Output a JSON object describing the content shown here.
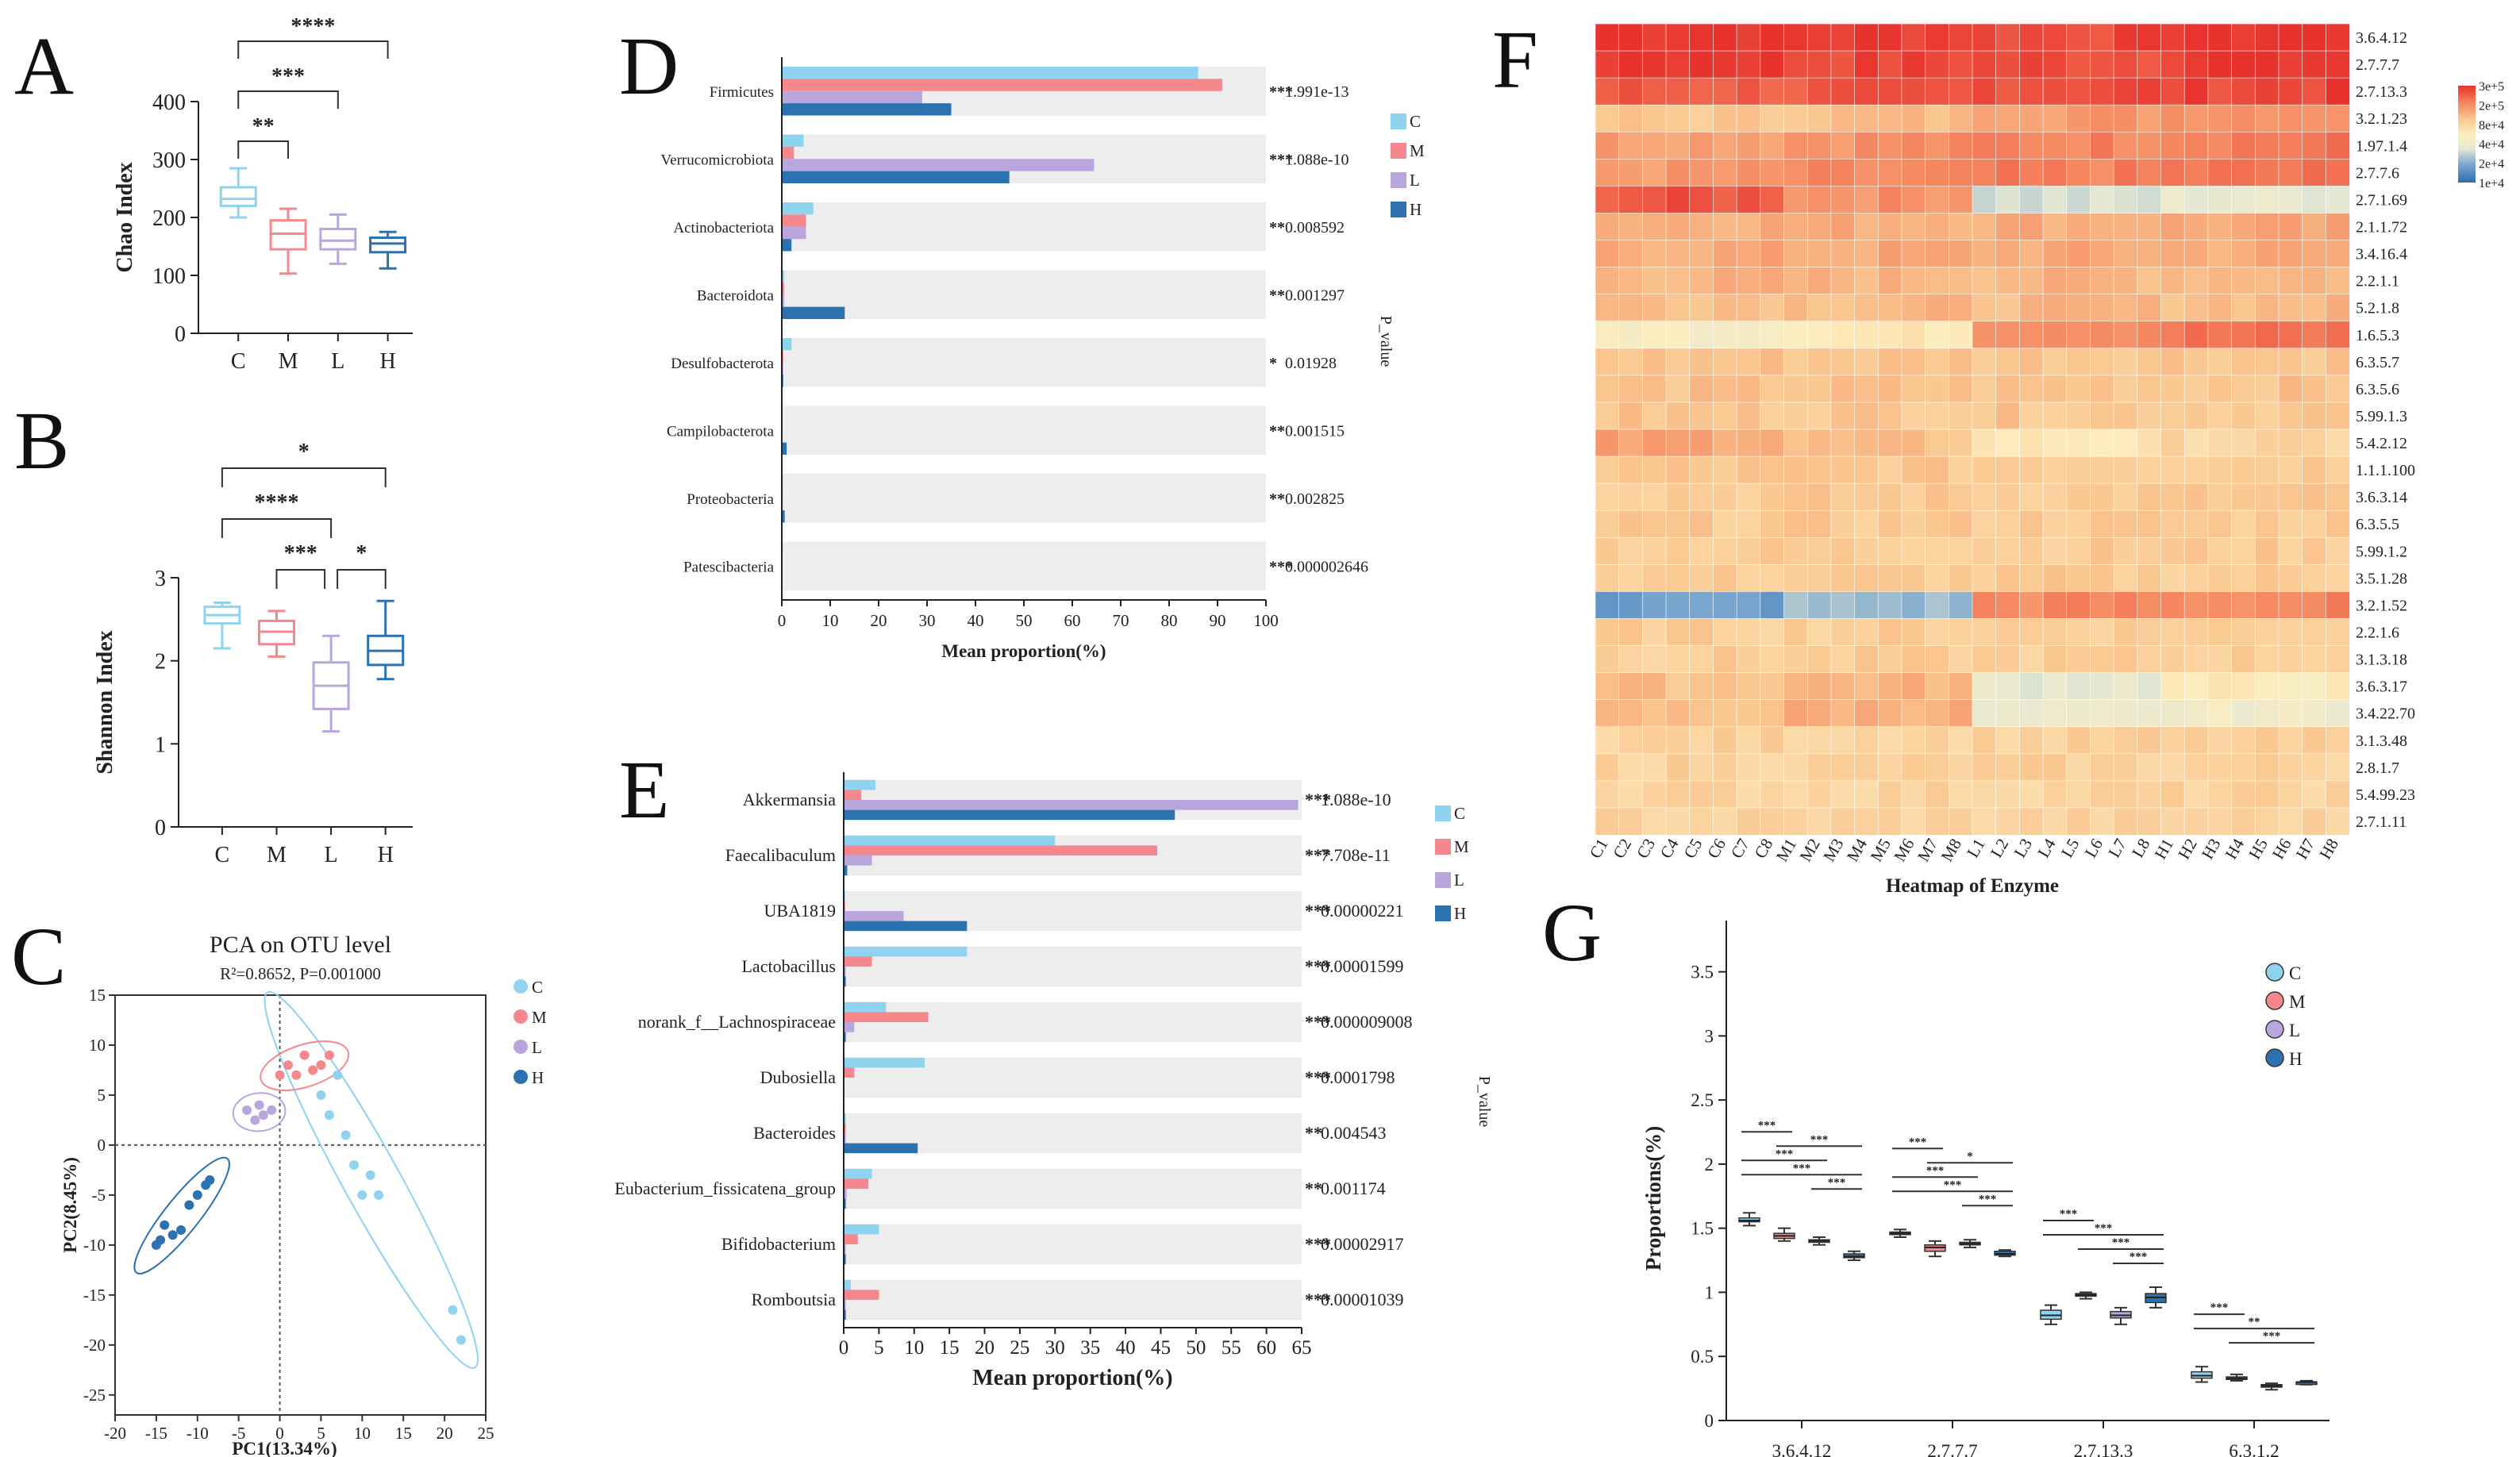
{
  "colors": {
    "C": "#8fd3ef",
    "M": "#f4888d",
    "L": "#b9a6dc",
    "H": "#2d72b0",
    "pval": "#d93a2e",
    "bandBg": "#ededed"
  },
  "groups": [
    "C",
    "M",
    "L",
    "H"
  ],
  "panels": {
    "A": {
      "letter": "A",
      "chart_data": {
        "type": "boxplot",
        "ylabel": "Chao Index",
        "ylim": [
          0,
          400
        ],
        "yticks": [
          "0",
          "100",
          "200",
          "300",
          "400"
        ],
        "categories": [
          "C",
          "M",
          "L",
          "H"
        ],
        "boxes": [
          {
            "group": "C",
            "min": 200,
            "q1": 220,
            "median": 232,
            "q3": 252,
            "max": 285
          },
          {
            "group": "M",
            "min": 103,
            "q1": 145,
            "median": 172,
            "q3": 195,
            "max": 215
          },
          {
            "group": "L",
            "min": 120,
            "q1": 145,
            "median": 160,
            "q3": 180,
            "max": 205
          },
          {
            "group": "H",
            "min": 112,
            "q1": 140,
            "median": 155,
            "q3": 165,
            "max": 175
          }
        ],
        "significance": [
          {
            "from": "C",
            "to": "M",
            "label": "**"
          },
          {
            "from": "C",
            "to": "L",
            "label": "***"
          },
          {
            "from": "C",
            "to": "H",
            "label": "****"
          }
        ]
      }
    },
    "B": {
      "letter": "B",
      "chart_data": {
        "type": "boxplot",
        "ylabel": "Shannon Index",
        "ylim": [
          0,
          3
        ],
        "yticks": [
          "0",
          "1",
          "2",
          "3"
        ],
        "categories": [
          "C",
          "M",
          "L",
          "H"
        ],
        "boxes": [
          {
            "group": "C",
            "min": 2.15,
            "q1": 2.45,
            "median": 2.55,
            "q3": 2.65,
            "max": 2.7
          },
          {
            "group": "M",
            "min": 2.05,
            "q1": 2.2,
            "median": 2.35,
            "q3": 2.48,
            "max": 2.6
          },
          {
            "group": "L",
            "min": 1.15,
            "q1": 1.42,
            "median": 1.7,
            "q3": 1.98,
            "max": 2.3
          },
          {
            "group": "H",
            "min": 1.78,
            "q1": 1.95,
            "median": 2.12,
            "q3": 2.3,
            "max": 2.72
          }
        ],
        "significance": [
          {
            "from": "C",
            "to": "H",
            "label": "*"
          },
          {
            "from": "C",
            "to": "L",
            "label": "****"
          },
          {
            "from": "M",
            "to": "L",
            "label": "***"
          },
          {
            "from": "L",
            "to": "H",
            "label": "*"
          }
        ]
      }
    },
    "C": {
      "letter": "C",
      "chart_data": {
        "type": "scatter",
        "title": "PCA on OTU level",
        "subtitle": "R²=0.8652, P=0.001000",
        "xlabel": "PC1(13.34%)",
        "ylabel": "PC2(8.45%)",
        "xlim": [
          -20,
          25
        ],
        "ylim": [
          -27,
          15
        ],
        "xticks": [
          "-20",
          "-15",
          "-10",
          "-5",
          "0",
          "5",
          "10",
          "15",
          "20",
          "25"
        ],
        "yticks": [
          "15",
          "10",
          "5",
          "0",
          "-5",
          "-10",
          "-15",
          "-20",
          "-25"
        ],
        "legend": [
          "C",
          "M",
          "L",
          "H"
        ],
        "series": [
          {
            "name": "C",
            "points": [
              [
                5,
                5
              ],
              [
                6,
                3
              ],
              [
                7,
                7
              ],
              [
                8,
                1
              ],
              [
                9,
                -2
              ],
              [
                10,
                -5
              ],
              [
                11,
                -3
              ],
              [
                12,
                -5
              ],
              [
                21,
                -16.5
              ],
              [
                22,
                -19.5
              ]
            ]
          },
          {
            "name": "M",
            "points": [
              [
                0,
                7
              ],
              [
                1,
                8
              ],
              [
                2,
                7
              ],
              [
                3,
                9
              ],
              [
                4,
                7.5
              ],
              [
                5,
                8
              ],
              [
                6,
                9
              ]
            ]
          },
          {
            "name": "L",
            "points": [
              [
                -4,
                3.5
              ],
              [
                -3,
                2.5
              ],
              [
                -2,
                3
              ],
              [
                -1,
                3.5
              ],
              [
                -2.5,
                4
              ]
            ]
          },
          {
            "name": "H",
            "points": [
              [
                -15,
                -10
              ],
              [
                -14,
                -8
              ],
              [
                -13,
                -9
              ],
              [
                -12,
                -8.5
              ],
              [
                -11,
                -6
              ],
              [
                -10,
                -5
              ],
              [
                -9,
                -4
              ],
              [
                -8.5,
                -3.5
              ],
              [
                -14.5,
                -9.5
              ]
            ]
          }
        ]
      }
    },
    "D": {
      "letter": "D",
      "chart_data": {
        "type": "bar",
        "orientation": "horizontal",
        "xlabel": "Mean proportion(%)",
        "pvalue_label": "P_value",
        "xlim": [
          0,
          100
        ],
        "xticks": [
          "0",
          "10",
          "20",
          "30",
          "40",
          "50",
          "60",
          "70",
          "80",
          "90",
          "100"
        ],
        "legend": [
          "C",
          "M",
          "L",
          "H"
        ],
        "rows": [
          {
            "name": "Firmicutes",
            "values": [
              86,
              91,
              29,
              35
            ],
            "p": "1.991e-13",
            "stars": "***"
          },
          {
            "name": "Verrucomicrobiota",
            "values": [
              4.5,
              2.5,
              64.5,
              47
            ],
            "p": "1.088e-10",
            "stars": "***"
          },
          {
            "name": "Actinobacteriota",
            "values": [
              6.5,
              5,
              5,
              2
            ],
            "p": "0.008592",
            "stars": "**"
          },
          {
            "name": "Bacteroidota",
            "values": [
              0.5,
              0.5,
              0.5,
              13
            ],
            "p": "0.001297",
            "stars": "**"
          },
          {
            "name": "Desulfobacterota",
            "values": [
              2,
              0.3,
              0.3,
              0.3
            ],
            "p": "0.01928",
            "stars": "*"
          },
          {
            "name": "Campilobacterota",
            "values": [
              0.1,
              0.1,
              0.1,
              1
            ],
            "p": "0.001515",
            "stars": "**"
          },
          {
            "name": "Proteobacteria",
            "values": [
              0.2,
              0.2,
              0.2,
              0.6
            ],
            "p": "0.002825",
            "stars": "**"
          },
          {
            "name": "Patescibacteria",
            "values": [
              0.2,
              0.1,
              0.1,
              0.1
            ],
            "p": "0.000002646",
            "stars": "***"
          }
        ]
      }
    },
    "E": {
      "letter": "E",
      "chart_data": {
        "type": "bar",
        "orientation": "horizontal",
        "xlabel": "Mean proportion(%)",
        "pvalue_label": "P_value",
        "xlim": [
          0,
          65
        ],
        "xticks": [
          "0",
          "5",
          "10",
          "15",
          "20",
          "25",
          "30",
          "35",
          "40",
          "45",
          "50",
          "55",
          "60",
          "65"
        ],
        "legend": [
          "C",
          "M",
          "L",
          "H"
        ],
        "rows": [
          {
            "name": "Akkermansia",
            "values": [
              4.5,
              2.5,
              64.5,
              47
            ],
            "p": "1.088e-10",
            "stars": "***"
          },
          {
            "name": "Faecalibaculum",
            "values": [
              30,
              44.5,
              4,
              0.5
            ],
            "p": "7.708e-11",
            "stars": "***"
          },
          {
            "name": "UBA1819",
            "values": [
              0.2,
              0.2,
              8.5,
              17.5
            ],
            "p": "0.00000221",
            "stars": "***"
          },
          {
            "name": "Lactobacillus",
            "values": [
              17.5,
              4,
              0.3,
              0.3
            ],
            "p": "0.00001599",
            "stars": "***"
          },
          {
            "name": "norank_f__Lachnospiraceae",
            "values": [
              6,
              12,
              1.5,
              0.3
            ],
            "p": "0.000009008",
            "stars": "***"
          },
          {
            "name": "Dubosiella",
            "values": [
              11.5,
              1.5,
              0.1,
              0.1
            ],
            "p": "0.0001798",
            "stars": "***"
          },
          {
            "name": "Bacteroides",
            "values": [
              0.3,
              0.3,
              0.3,
              10.5
            ],
            "p": "0.004543",
            "stars": "**"
          },
          {
            "name": "Eubacterium_fissicatena_group",
            "values": [
              4,
              3.5,
              0.4,
              0.3
            ],
            "p": "0.001174",
            "stars": "**"
          },
          {
            "name": "Bifidobacterium",
            "values": [
              5,
              2,
              0.3,
              0.3
            ],
            "p": "0.00002917",
            "stars": "***"
          },
          {
            "name": "Romboutsia",
            "values": [
              1,
              5,
              0.3,
              0.3
            ],
            "p": "0.00001039",
            "stars": "***"
          }
        ]
      }
    },
    "F": {
      "letter": "F",
      "chart_data": {
        "type": "heatmap",
        "xlabel": "Heatmap of Enzyme",
        "columns": [
          "C1",
          "C2",
          "C3",
          "C4",
          "C5",
          "C6",
          "C7",
          "C8",
          "M1",
          "M2",
          "M3",
          "M4",
          "M5",
          "M6",
          "M7",
          "M8",
          "L1",
          "L2",
          "L3",
          "L4",
          "L5",
          "L6",
          "L7",
          "L8",
          "H1",
          "H2",
          "H3",
          "H4",
          "H5",
          "H6",
          "H7",
          "H8"
        ],
        "rows": [
          "3.6.4.12",
          "2.7.7.7",
          "2.7.13.3",
          "3.2.1.23",
          "1.97.1.4",
          "2.7.7.6",
          "2.7.1.69",
          "2.1.1.72",
          "3.4.16.4",
          "2.2.1.1",
          "5.2.1.8",
          "1.6.5.3",
          "6.3.5.7",
          "6.3.5.6",
          "5.99.1.3",
          "5.4.2.12",
          "1.1.1.100",
          "3.6.3.14",
          "6.3.5.5",
          "5.99.1.2",
          "3.5.1.28",
          "3.2.1.52",
          "2.2.1.6",
          "3.1.3.18",
          "3.6.3.17",
          "3.4.22.70",
          "3.1.3.48",
          "2.8.1.7",
          "5.4.99.23",
          "2.7.1.11"
        ],
        "row_means": [
          300000.0,
          295000.0,
          250000.0,
          120000.0,
          155000.0,
          155000.0,
          100000.0,
          120000.0,
          120000.0,
          110000.0,
          105000.0,
          100000.0,
          95000.0,
          95000.0,
          92000.0,
          90000.0,
          90000.0,
          88000.0,
          88000.0,
          86000.0,
          86000.0,
          80000.0,
          85000.0,
          84000.0,
          83000.0,
          82000.0,
          80000.0,
          80000.0,
          78000.0,
          78000.0
        ],
        "colorbar_ticks": [
          "3e+5",
          "2e+5",
          "8e+4",
          "4e+4",
          "2e+4",
          "1e+4"
        ]
      }
    },
    "G": {
      "letter": "G",
      "chart_data": {
        "type": "boxplot",
        "ylabel": "Proportions(%)",
        "ylim": [
          0,
          3.5
        ],
        "yticks": [
          "0",
          "0.5",
          "1",
          "1.5",
          "2",
          "2.5",
          "3",
          "3.5"
        ],
        "categories": [
          "3.6.4.12",
          "2.7.7.7",
          "2.7.13.3",
          "6.3.1.2"
        ],
        "legend": [
          "C",
          "M",
          "L",
          "H"
        ],
        "boxes": [
          [
            [
              1.52,
              1.55,
              1.56,
              1.58,
              1.62
            ],
            [
              1.4,
              1.42,
              1.44,
              1.46,
              1.5
            ],
            [
              1.37,
              1.39,
              1.4,
              1.41,
              1.43
            ],
            [
              1.25,
              1.27,
              1.28,
              1.3,
              1.32
            ]
          ],
          [
            [
              1.43,
              1.45,
              1.46,
              1.47,
              1.49
            ],
            [
              1.28,
              1.32,
              1.35,
              1.37,
              1.4
            ],
            [
              1.35,
              1.37,
              1.38,
              1.39,
              1.41
            ],
            [
              1.28,
              1.29,
              1.3,
              1.32,
              1.33
            ]
          ],
          [
            [
              0.75,
              0.79,
              0.82,
              0.86,
              0.9
            ],
            [
              0.95,
              0.97,
              0.98,
              0.99,
              1.0
            ],
            [
              0.75,
              0.8,
              0.82,
              0.85,
              0.88
            ],
            [
              0.88,
              0.92,
              0.96,
              0.99,
              1.04
            ]
          ],
          [
            [
              0.3,
              0.33,
              0.35,
              0.38,
              0.42
            ],
            [
              0.31,
              0.32,
              0.33,
              0.34,
              0.36
            ],
            [
              0.24,
              0.26,
              0.27,
              0.28,
              0.29
            ],
            [
              0.28,
              0.29,
              0.3,
              0.3,
              0.31
            ]
          ]
        ],
        "significance": [
          {
            "category": "3.6.4.12",
            "labels": [
              "***",
              "***",
              "***",
              "***",
              "***"
            ]
          },
          {
            "category": "2.7.7.7",
            "labels": [
              "***",
              "*",
              "***",
              "***",
              "***"
            ]
          },
          {
            "category": "2.7.13.3",
            "labels": [
              "***",
              "***",
              "***",
              "***"
            ]
          },
          {
            "category": "6.3.1.2",
            "labels": [
              "***",
              "**",
              "***"
            ]
          }
        ]
      }
    }
  }
}
